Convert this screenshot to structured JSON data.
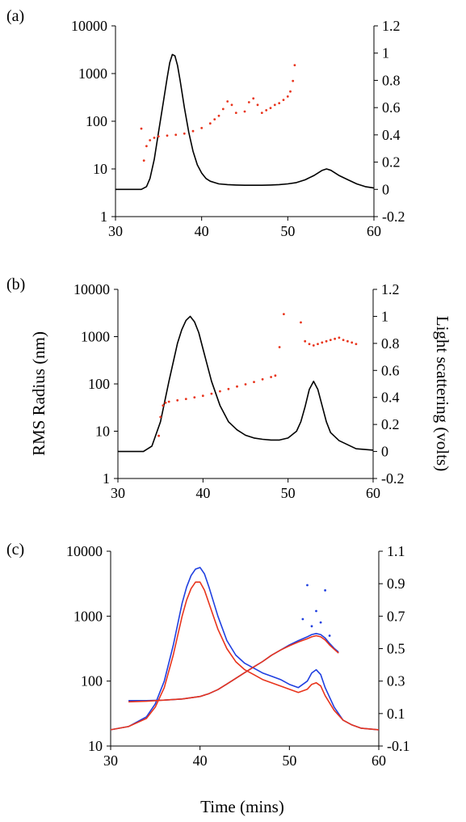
{
  "y_axis_title": "RMS Radius (nm)",
  "y2_axis_title": "Light scattering (volts)",
  "x_axis_title": "Time (mins)",
  "colors": {
    "scatter": "#e8341c",
    "blue": "#1f3fe0",
    "red": "#e8341c",
    "black": "#000000"
  },
  "chart_data": [
    {
      "type": "line",
      "panel_label": "(a)",
      "xlim": [
        30,
        60
      ],
      "x_ticks": [
        "30",
        "40",
        "50",
        "60"
      ],
      "ylim": [
        1,
        10000
      ],
      "y_scale": "log",
      "y_ticks": [
        "1",
        "10",
        "100",
        "1000",
        "10000"
      ],
      "y2lim": [
        -0.2,
        1.2
      ],
      "y2_ticks": [
        "-0.2",
        "0",
        "0.2",
        "0.4",
        "0.6",
        "0.8",
        "1",
        "1.2"
      ],
      "series": [
        {
          "axis": "right",
          "style": "line",
          "color": "#000000",
          "x": [
            30,
            33,
            33.6,
            34,
            34.5,
            35,
            35.5,
            36,
            36.3,
            36.6,
            36.9,
            37.2,
            37.5,
            38,
            38.5,
            39,
            39.5,
            40,
            40.5,
            41,
            41.5,
            42,
            43,
            44,
            45,
            46,
            47,
            48,
            49,
            50,
            51,
            52,
            53,
            53.5,
            54,
            54.5,
            55,
            55.5,
            56,
            57,
            58,
            59,
            60
          ],
          "values": [
            0.0,
            0.0,
            0.02,
            0.08,
            0.22,
            0.42,
            0.62,
            0.82,
            0.93,
            0.99,
            0.98,
            0.91,
            0.8,
            0.6,
            0.42,
            0.28,
            0.18,
            0.12,
            0.08,
            0.06,
            0.05,
            0.04,
            0.035,
            0.032,
            0.03,
            0.03,
            0.03,
            0.032,
            0.035,
            0.04,
            0.05,
            0.07,
            0.1,
            0.12,
            0.14,
            0.15,
            0.14,
            0.12,
            0.1,
            0.07,
            0.04,
            0.02,
            0.01
          ]
        },
        {
          "axis": "left",
          "style": "scatter",
          "color": "#e8341c",
          "x": [
            33,
            33.3,
            33.6,
            34,
            34.5,
            35,
            36,
            37,
            38,
            39,
            40,
            41,
            41.5,
            42,
            42.5,
            43,
            43.5,
            44,
            45,
            45.5,
            46,
            46.5,
            47,
            47.5,
            48,
            48.5,
            49,
            49.5,
            50,
            50.3,
            50.6,
            50.8
          ],
          "values": [
            70,
            15,
            30,
            40,
            45,
            48,
            50,
            52,
            55,
            62,
            72,
            90,
            110,
            130,
            180,
            260,
            220,
            150,
            160,
            250,
            300,
            220,
            150,
            170,
            190,
            220,
            240,
            280,
            330,
            420,
            700,
            1500
          ]
        }
      ]
    },
    {
      "type": "line",
      "panel_label": "(b)",
      "xlim": [
        30,
        60
      ],
      "x_ticks": [
        "30",
        "40",
        "50",
        "60"
      ],
      "ylim": [
        1,
        10000
      ],
      "y_scale": "log",
      "y_ticks": [
        "1",
        "10",
        "100",
        "1000",
        "10000"
      ],
      "y2lim": [
        -0.2,
        1.2
      ],
      "y2_ticks": [
        "-0.2",
        "0",
        "0.2",
        "0.4",
        "0.6",
        "0.8",
        "1",
        "1.2"
      ],
      "series": [
        {
          "axis": "right",
          "style": "line",
          "color": "#000000",
          "x": [
            30,
            33,
            34,
            35,
            36,
            37,
            37.5,
            38,
            38.5,
            39,
            39.5,
            40,
            41,
            42,
            43,
            44,
            45,
            46,
            47,
            48,
            49,
            50,
            51,
            51.5,
            52,
            52.5,
            53,
            53.5,
            54,
            54.5,
            55,
            56,
            57,
            58,
            60
          ],
          "values": [
            0.0,
            0.0,
            0.04,
            0.22,
            0.52,
            0.8,
            0.9,
            0.97,
            1.0,
            0.96,
            0.88,
            0.76,
            0.52,
            0.34,
            0.22,
            0.16,
            0.12,
            0.1,
            0.09,
            0.085,
            0.085,
            0.1,
            0.15,
            0.22,
            0.33,
            0.46,
            0.52,
            0.46,
            0.34,
            0.22,
            0.14,
            0.08,
            0.05,
            0.02,
            0.01
          ]
        },
        {
          "axis": "left",
          "style": "scatter",
          "color": "#e8341c",
          "x": [
            34.8,
            35,
            35.3,
            35.6,
            36,
            37,
            38,
            39,
            40,
            41,
            42,
            43,
            44,
            45,
            46,
            47,
            48,
            48.5,
            49,
            49.5,
            51.5,
            52,
            52.5,
            53,
            53.5,
            54,
            54.5,
            55,
            55.5,
            56,
            56.5,
            57,
            57.5,
            58
          ],
          "values": [
            8,
            20,
            35,
            40,
            42,
            45,
            48,
            52,
            56,
            62,
            70,
            78,
            88,
            98,
            110,
            125,
            140,
            150,
            600,
            3000,
            2000,
            800,
            700,
            650,
            700,
            750,
            800,
            850,
            900,
            950,
            850,
            800,
            750,
            700
          ]
        }
      ]
    },
    {
      "type": "line",
      "panel_label": "(c)",
      "xlim": [
        30,
        60
      ],
      "x_ticks": [
        "30",
        "40",
        "50",
        "60"
      ],
      "ylim": [
        10,
        10000
      ],
      "y_scale": "log",
      "y_ticks": [
        "10",
        "100",
        "1000",
        "10000"
      ],
      "y2lim": [
        -0.1,
        1.1
      ],
      "y2_ticks": [
        "-0.1",
        "0.1",
        "0.3",
        "0.5",
        "0.7",
        "0.9",
        "1.1"
      ],
      "series": [
        {
          "axis": "right",
          "style": "line",
          "color": "#1f3fe0",
          "x": [
            30,
            32,
            34,
            35,
            36,
            37,
            38,
            38.5,
            39,
            39.5,
            40,
            40.5,
            41,
            42,
            43,
            44,
            45,
            46,
            47,
            48,
            49,
            50,
            51,
            52,
            52.5,
            53,
            53.5,
            54,
            55,
            56,
            57,
            58,
            60
          ],
          "values": [
            0.0,
            0.02,
            0.08,
            0.16,
            0.3,
            0.52,
            0.78,
            0.88,
            0.95,
            0.99,
            1.0,
            0.96,
            0.88,
            0.7,
            0.55,
            0.46,
            0.41,
            0.38,
            0.35,
            0.33,
            0.31,
            0.28,
            0.26,
            0.3,
            0.35,
            0.37,
            0.34,
            0.26,
            0.14,
            0.06,
            0.03,
            0.01,
            0.0
          ]
        },
        {
          "axis": "right",
          "style": "line",
          "color": "#e8341c",
          "x": [
            30,
            32,
            34,
            35,
            36,
            37,
            38,
            38.5,
            39,
            39.5,
            40,
            40.5,
            41,
            42,
            43,
            44,
            45,
            46,
            47,
            48,
            49,
            50,
            51,
            52,
            52.5,
            53,
            53.5,
            54,
            55,
            56,
            57,
            58,
            60
          ],
          "values": [
            0.0,
            0.02,
            0.07,
            0.14,
            0.26,
            0.46,
            0.7,
            0.8,
            0.87,
            0.91,
            0.91,
            0.86,
            0.78,
            0.62,
            0.5,
            0.42,
            0.37,
            0.34,
            0.31,
            0.29,
            0.27,
            0.25,
            0.23,
            0.25,
            0.28,
            0.29,
            0.27,
            0.21,
            0.12,
            0.06,
            0.03,
            0.01,
            0.0
          ]
        },
        {
          "axis": "left",
          "style": "line",
          "color": "#1f3fe0",
          "x": [
            32,
            34,
            36,
            38,
            40,
            41,
            42,
            43,
            44,
            45,
            46,
            47,
            48,
            49,
            50,
            51,
            52,
            52.5,
            53,
            53.5,
            54,
            54.5,
            55,
            55.5
          ],
          "values": [
            50,
            50,
            51,
            53,
            58,
            64,
            74,
            90,
            110,
            135,
            165,
            200,
            250,
            300,
            360,
            420,
            480,
            520,
            540,
            520,
            460,
            380,
            320,
            280
          ]
        },
        {
          "axis": "left",
          "style": "line",
          "color": "#e8341c",
          "x": [
            32,
            34,
            36,
            38,
            40,
            41,
            42,
            43,
            44,
            45,
            46,
            47,
            48,
            49,
            50,
            51,
            52,
            52.5,
            53,
            53.5,
            54,
            54.5,
            55,
            55.5
          ],
          "values": [
            48,
            49,
            51,
            53,
            58,
            64,
            74,
            90,
            110,
            135,
            165,
            200,
            250,
            300,
            350,
            400,
            450,
            480,
            500,
            480,
            430,
            360,
            310,
            270
          ]
        },
        {
          "axis": "left",
          "style": "scatter",
          "color": "#1f3fe0",
          "x": [
            51.5,
            52,
            52.5,
            53,
            53.5,
            54,
            54.5
          ],
          "values": [
            900,
            3000,
            700,
            1200,
            800,
            2500,
            500
          ]
        }
      ]
    }
  ]
}
